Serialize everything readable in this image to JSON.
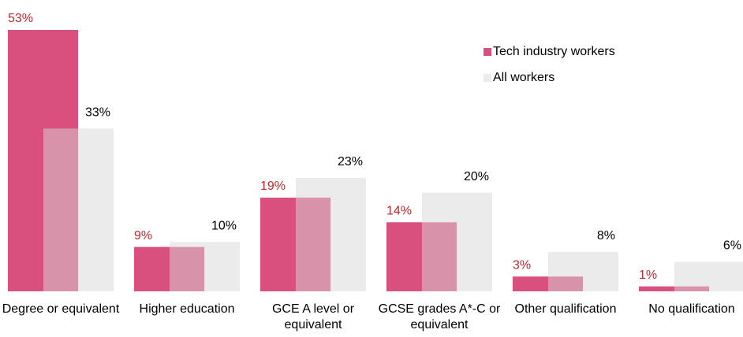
{
  "chart_data": {
    "type": "bar",
    "categories": [
      "Degree or equivalent",
      "Higher education",
      "GCE A level or equivalent",
      "GCSE grades A*-C or equivalent",
      "Other qualification",
      "No qualification"
    ],
    "series": [
      {
        "name": "Tech industry workers",
        "color": "#d94f7e",
        "values": [
          53,
          9,
          19,
          14,
          3,
          1
        ],
        "value_labels": [
          "53%",
          "9%",
          "19%",
          "14%",
          "3%",
          "1%"
        ],
        "label_color": "#c0272d"
      },
      {
        "name": "All workers",
        "color": "#d8d8d8",
        "values": [
          33,
          10,
          23,
          20,
          8,
          6
        ],
        "value_labels": [
          "33%",
          "10%",
          "23%",
          "20%",
          "8%",
          "6%"
        ],
        "label_color": "#000000"
      }
    ],
    "ylim": [
      0,
      53
    ],
    "legend": "upper right",
    "grid": false
  }
}
